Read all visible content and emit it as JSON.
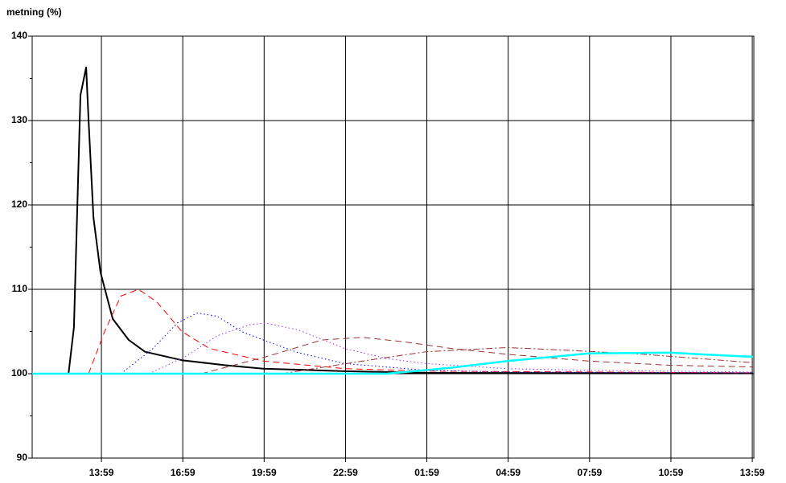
{
  "chart_data": {
    "type": "line",
    "title": "metning (%)",
    "xlim": [
      11.43,
      38.04
    ],
    "ylim": [
      90,
      140
    ],
    "yticks": [
      90,
      100,
      110,
      120,
      130,
      140
    ],
    "yminor_ticks": [
      95,
      105,
      115,
      125,
      135
    ],
    "xticks": [
      {
        "value": 13.983,
        "label": "13:59"
      },
      {
        "value": 16.983,
        "label": "16:59"
      },
      {
        "value": 19.983,
        "label": "19:59"
      },
      {
        "value": 22.983,
        "label": "22:59"
      },
      {
        "value": 25.983,
        "label": "01:59"
      },
      {
        "value": 28.983,
        "label": "04:59"
      },
      {
        "value": 31.983,
        "label": "07:59"
      },
      {
        "value": 34.983,
        "label": "10:59"
      },
      {
        "value": 37.983,
        "label": "13:59"
      }
    ],
    "grid": true,
    "series": [
      {
        "color": "#000000",
        "dash": "solid",
        "line_width": 2,
        "x": [
          12.77,
          12.97,
          13.21,
          13.42,
          13.51,
          13.69,
          13.95,
          14.4,
          14.99,
          15.59,
          16.95,
          18.56,
          19.95,
          22.95,
          25.95,
          38.01
        ],
        "values": [
          100,
          105.5,
          133,
          136.3,
          130,
          118.5,
          112,
          106.5,
          104,
          102.6,
          101.6,
          101,
          100.6,
          100.3,
          100.1,
          100.05
        ]
      },
      {
        "color": "#ff0000",
        "dash": "dashed",
        "line_width": 1,
        "x": [
          13.51,
          14.1,
          14.7,
          15.35,
          16.03,
          16.95,
          17.96,
          19.95,
          22.95,
          25.95,
          38.01
        ],
        "values": [
          100,
          105,
          109.2,
          110,
          108.5,
          105,
          103,
          101.5,
          100.6,
          100.3,
          100.1
        ]
      },
      {
        "color": "#0000ff",
        "dash": "dotted",
        "line_width": 1,
        "x": [
          14.7,
          15.89,
          16.78,
          17.52,
          18.26,
          19.15,
          19.95,
          21.23,
          22.95,
          25.95,
          28.95,
          38.01
        ],
        "values": [
          100,
          103,
          106,
          107.2,
          106.8,
          105,
          104,
          102.5,
          101.2,
          100.4,
          100.2,
          100.1
        ]
      },
      {
        "color": "#9933ff",
        "dash": "dotted",
        "line_width": 1,
        "x": [
          15.74,
          17.07,
          18.26,
          19.45,
          20.04,
          21.23,
          22.95,
          24.49,
          25.95,
          28.95,
          31.95,
          38.01
        ],
        "values": [
          100,
          102,
          104.5,
          105.8,
          106,
          105.2,
          103,
          101.8,
          101.2,
          100.6,
          100.4,
          100.2
        ]
      },
      {
        "color": "#993333",
        "dash": "dashed",
        "line_width": 1,
        "x": [
          17.67,
          20.04,
          22.12,
          23.61,
          25.09,
          26.87,
          28.95,
          31.95,
          34.95,
          38.01
        ],
        "values": [
          100,
          102,
          104,
          104.3,
          103.8,
          103,
          102.3,
          101.5,
          101,
          100.8
        ]
      },
      {
        "color": "#993333",
        "dash": "dashdot",
        "line_width": 1,
        "x": [
          20.64,
          23.61,
          25.95,
          28.95,
          31.03,
          34.0,
          38.01
        ],
        "values": [
          100,
          101.5,
          102.6,
          103.1,
          102.8,
          102.3,
          101.3
        ]
      },
      {
        "color": "#00ffff",
        "dash": "solid",
        "line_width": 2.5,
        "x": [
          11.43,
          24.49,
          26.87,
          28.95,
          31.95,
          34.95,
          36.08,
          38.01
        ],
        "values": [
          100,
          100,
          100.7,
          101.5,
          102.4,
          102.5,
          102.3,
          102
        ]
      }
    ]
  }
}
